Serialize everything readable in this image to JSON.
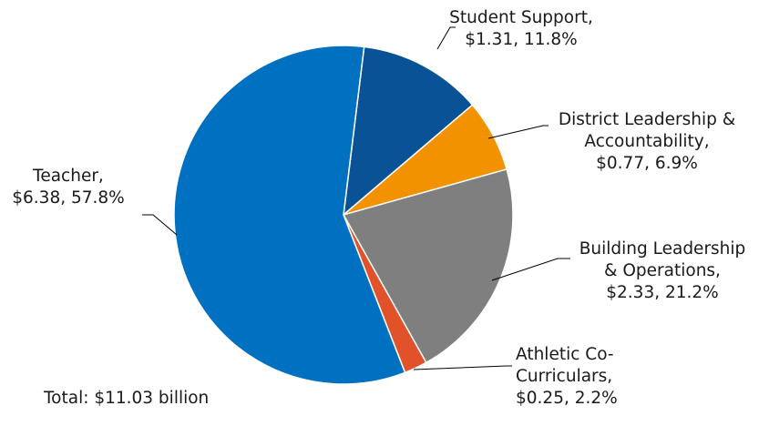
{
  "chart_data": {
    "type": "pie",
    "slices": [
      {
        "label_lines": [
          "Student Support,",
          "$1.31, 11.8%"
        ],
        "value": 1.31,
        "percent": 11.8,
        "color": "#0a5296"
      },
      {
        "label_lines": [
          "District Leadership &",
          "Accountability,",
          "$0.77, 6.9%"
        ],
        "value": 0.77,
        "percent": 6.9,
        "color": "#f39200"
      },
      {
        "label_lines": [
          "Building Leadership",
          "& Operations,",
          "$2.33, 21.2%"
        ],
        "value": 2.33,
        "percent": 21.2,
        "color": "#7f7f7f"
      },
      {
        "label_lines": [
          "Athletic Co-",
          "Curriculars,",
          "$0.25, 2.2%"
        ],
        "value": 0.25,
        "percent": 2.2,
        "color": "#e1512a"
      },
      {
        "label_lines": [
          "Teacher,",
          "$6.38, 57.8%"
        ],
        "value": 6.38,
        "percent": 57.8,
        "color": "#0070c0"
      }
    ],
    "total_note": "Total: $11.03 billion",
    "start_angle": "slightly right of 12 o'clock",
    "direction": "clockwise"
  },
  "colors": {
    "slice_border": "#ffffff",
    "leader_line": "#000000"
  }
}
